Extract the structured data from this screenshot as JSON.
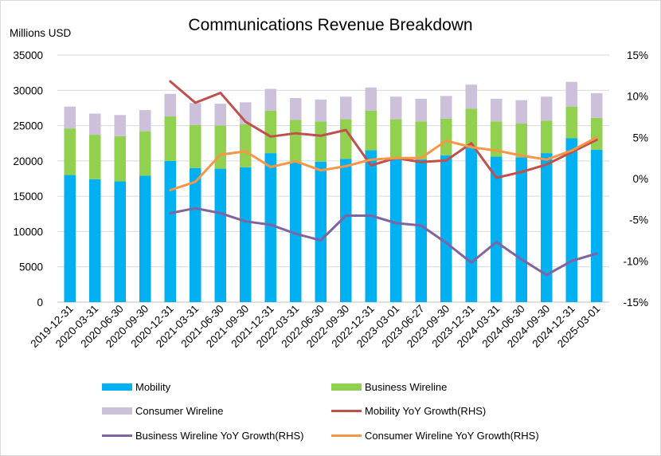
{
  "chart_data": {
    "type": "bar",
    "title": "Communications Revenue Breakdown",
    "ylabel": "Millions USD",
    "ylim": [
      0,
      35000
    ],
    "yticks": [
      0,
      5000,
      10000,
      15000,
      20000,
      25000,
      30000,
      35000
    ],
    "y2lim": [
      -15,
      15
    ],
    "y2ticks": [
      "-15%",
      "-10%",
      "-5%",
      "0%",
      "5%",
      "10%",
      "15%"
    ],
    "y2tick_values": [
      -15,
      -10,
      -5,
      0,
      5,
      10,
      15
    ],
    "grid": "horizontal",
    "legend_position": "bottom",
    "categories": [
      "2019-12-31",
      "2020-03-31",
      "2020-06-30",
      "2020-09-30",
      "2020-12-31",
      "2021-03-31",
      "2021-06-30",
      "2021-09-30",
      "2021-12-31",
      "2022-03-31",
      "2022-06-30",
      "2022-09-30",
      "2022-12-31",
      "2023-03-01",
      "2023-06-27",
      "2023-09-30",
      "2023-12-31",
      "2024-03-31",
      "2024-06-30",
      "2024-09-30",
      "2024-12-31",
      "2025-03-01"
    ],
    "bar_series": [
      {
        "name": "Mobility",
        "color": "#00b0f0",
        "values": [
          18000,
          17400,
          17100,
          17900,
          20000,
          19000,
          18900,
          19100,
          21100,
          19900,
          19900,
          20300,
          21500,
          20400,
          20200,
          20800,
          22000,
          20600,
          20500,
          21100,
          23200,
          21600
        ]
      },
      {
        "name": "Business Wireline",
        "color": "#92d050",
        "values": [
          6600,
          6300,
          6400,
          6300,
          6300,
          6100,
          6100,
          6100,
          6000,
          5900,
          5700,
          5600,
          5600,
          5500,
          5400,
          5200,
          5400,
          5000,
          4800,
          4600,
          4500,
          4500
        ]
      },
      {
        "name": "Consumer Wireline",
        "color": "#ccc0da",
        "values": [
          3100,
          3000,
          3000,
          3000,
          3200,
          3100,
          3100,
          3100,
          3100,
          3100,
          3100,
          3200,
          3300,
          3200,
          3200,
          3200,
          3400,
          3200,
          3300,
          3400,
          3500,
          3500
        ]
      }
    ],
    "line_series": [
      {
        "name": "Mobility YoY Growth(RHS)",
        "color": "#c0504d",
        "start": 4,
        "values": [
          11.8,
          9.2,
          10.4,
          6.9,
          5.1,
          5.5,
          5.2,
          5.9,
          1.6,
          2.5,
          2.0,
          2.2,
          4.3,
          0.1,
          0.8,
          1.7,
          3.2,
          4.7
        ]
      },
      {
        "name": "Business Wireline YoY Growth(RHS)",
        "color": "#8064a2",
        "start": 4,
        "values": [
          -4.2,
          -3.6,
          -4.2,
          -5.2,
          -5.6,
          -6.7,
          -7.5,
          -4.5,
          -4.5,
          -5.4,
          -5.7,
          -7.8,
          -10.2,
          -7.7,
          -9.8,
          -11.7,
          -10.0,
          -9.1
        ]
      },
      {
        "name": "Consumer Wireline YoY Growth(RHS)",
        "color": "#f79646",
        "start": 4,
        "values": [
          -1.4,
          -0.4,
          2.9,
          3.3,
          1.4,
          2.1,
          1.0,
          1.5,
          2.3,
          2.5,
          2.5,
          4.6,
          3.8,
          3.4,
          2.8,
          2.3,
          3.4,
          5.0
        ]
      }
    ]
  }
}
